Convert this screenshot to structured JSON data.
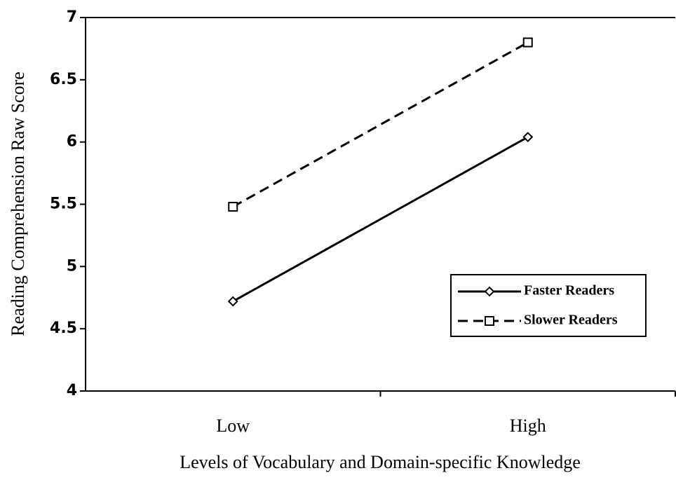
{
  "chart_data": {
    "type": "line",
    "xlabel": "Levels of Vocabulary and Domain-specific Knowledge",
    "ylabel": "Reading Comprehension Raw Score",
    "categories": [
      "Low",
      "High"
    ],
    "series": [
      {
        "name": "Faster Readers",
        "color": "#000000",
        "dash": "solid",
        "marker": "diamond",
        "values": [
          4.72,
          6.04
        ]
      },
      {
        "name": "Slower Readers",
        "color": "#000000",
        "dash": "dashed",
        "marker": "square",
        "values": [
          5.48,
          6.8
        ]
      }
    ],
    "ylim": [
      4,
      7
    ],
    "yticks": [
      4,
      4.5,
      5,
      5.5,
      6,
      6.5,
      7
    ],
    "grid": false,
    "legend": "lower right"
  }
}
